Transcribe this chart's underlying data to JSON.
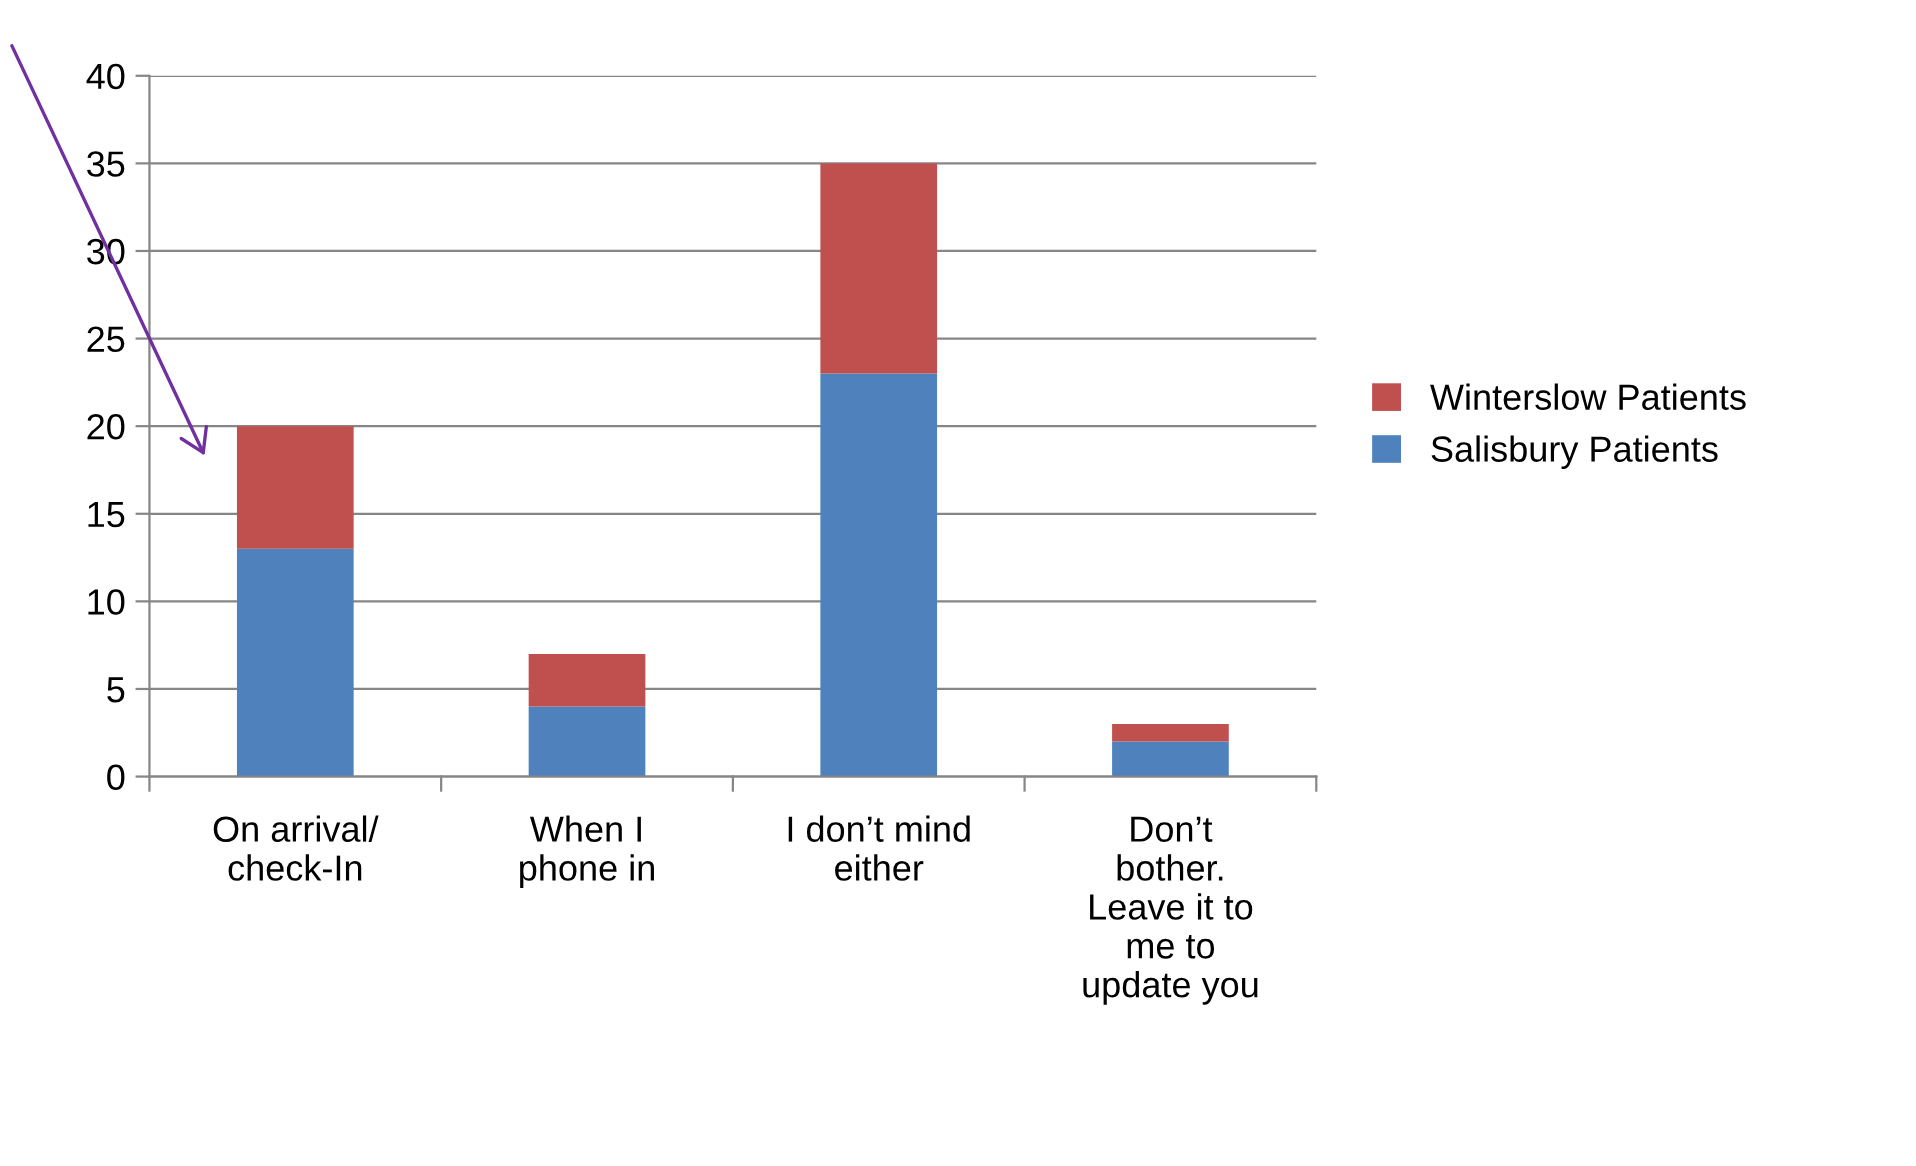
{
  "chart_data": {
    "type": "bar",
    "stacked": true,
    "categories": [
      "On arrival/\ncheck-In",
      "When I\nphone in",
      "I don’t mind\neither",
      "Don’t\nbother.\nLeave it to\nme to\nupdate you"
    ],
    "series": [
      {
        "name": "Salisbury Patients",
        "color": "#4f81bd",
        "values": [
          13,
          4,
          23,
          2
        ]
      },
      {
        "name": "Winterslow Patients",
        "color": "#c0504d",
        "values": [
          7,
          3,
          12,
          1
        ]
      }
    ],
    "ylim": [
      0,
      40
    ],
    "yticks": [
      0,
      5,
      10,
      15,
      20,
      25,
      30,
      35,
      40
    ],
    "grid": "y",
    "legend": "right"
  }
}
